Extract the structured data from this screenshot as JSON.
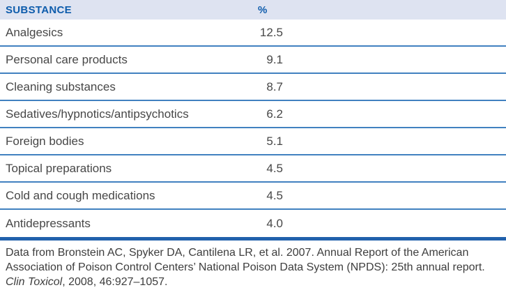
{
  "table": {
    "columns": [
      {
        "label": "SUBSTANCE"
      },
      {
        "label": "%"
      }
    ],
    "rows": [
      {
        "substance": "Analgesics",
        "percent": "12.5"
      },
      {
        "substance": "Personal care products",
        "percent": "9.1"
      },
      {
        "substance": "Cleaning substances",
        "percent": "8.7"
      },
      {
        "substance": "Sedatives/hypnotics/antipsychotics",
        "percent": "6.2"
      },
      {
        "substance": "Foreign bodies",
        "percent": "5.1"
      },
      {
        "substance": "Topical preparations",
        "percent": "4.5"
      },
      {
        "substance": "Cold and cough medications",
        "percent": "4.5"
      },
      {
        "substance": "Antidepressants",
        "percent": "4.0"
      }
    ]
  },
  "footnote": {
    "line1": "Data from Bronstein AC, Spyker DA, Cantilena LR, et al. 2007. Annual Report of the American",
    "line2": "Association of Poison Control Centers’ National Poison Data System (NPDS): 25th annual report.",
    "line3_italic": "Clin Toxicol",
    "line3_rest": ", 2008, 46:927–1057."
  },
  "colors": {
    "header_background": "#dee3f1",
    "header_text": "#0e5cac",
    "row_divider": "#4181c0",
    "table_bottom_rule": "#2161ac",
    "body_text": "#474747",
    "footnote_text": "#3d3d3d"
  }
}
